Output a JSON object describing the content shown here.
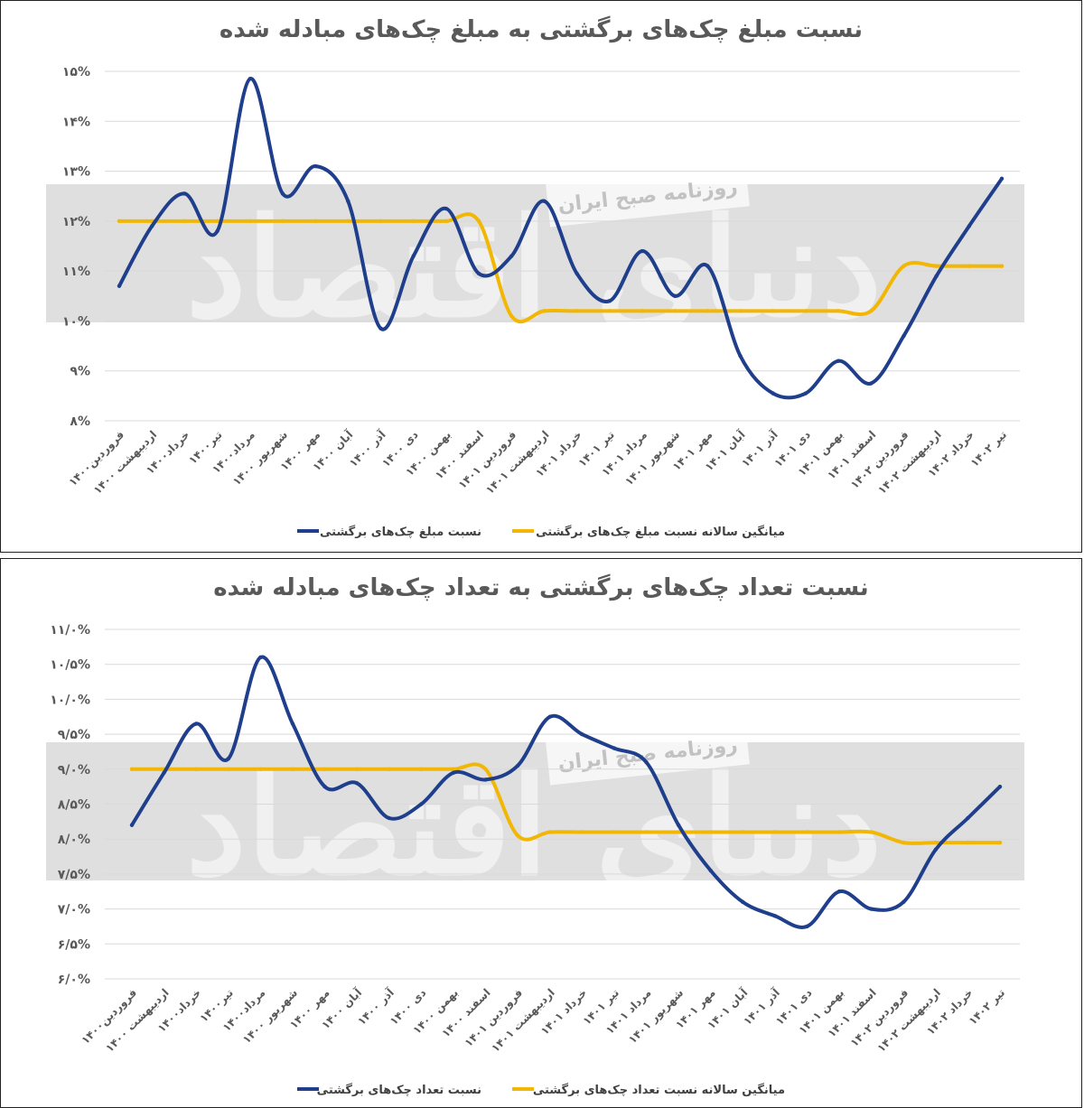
{
  "colors": {
    "main": "#1f3f8c",
    "avg": "#f2b705"
  },
  "watermark": {
    "label": "روزنامه صبح ایران",
    "logo_text": "دنیای اقتصاد"
  },
  "chart_data": [
    {
      "type": "line",
      "title": "نسبت مبلغ چک‌های برگشتی به مبلغ چک‌های مبادله شده",
      "y_ticks": [
        "۸%",
        "۹%",
        "۱۰%",
        "۱۱%",
        "۱۲%",
        "۱۳%",
        "۱۴%",
        "۱۵%"
      ],
      "ylim": [
        8,
        15
      ],
      "categories": [
        "فروردین۱۴۰۰",
        "اردیبهشت ۱۴۰۰",
        "خرداد۱۴۰۰",
        "تیر۱۴۰۰",
        "مرداد۱۴۰۰",
        "شهریور ۱۴۰۰",
        "مهر ۱۴۰۰",
        "آبان ۱۴۰۰",
        "آذر ۱۴۰۰",
        "دی ۱۴۰۰",
        "بهمن ۱۴۰۰",
        "اسفند ۱۴۰۰",
        "فروردین ۱۴۰۱",
        "اردیبهشت ۱۴۰۱",
        "خرداد ۱۴۰۱",
        "تیر ۱۴۰۱",
        "مرداد ۱۴۰۱",
        "شهریور ۱۴۰۱",
        "مهر ۱۴۰۱",
        "آبان ۱۴۰۱",
        "آذر ۱۴۰۱",
        "دی ۱۴۰۱",
        "بهمن ۱۴۰۱",
        "اسفند ۱۴۰۱",
        "فروردین ۱۴۰۲",
        "اردیبهشت ۱۴۰۲",
        "خرداد ۱۴۰۲",
        "تیر ۱۴۰۲"
      ],
      "series": [
        {
          "name": "نسبت مبلغ چک‌های برگشتی",
          "color": "#1f3f8c",
          "values": [
            10.7,
            11.9,
            12.55,
            11.8,
            14.85,
            12.55,
            13.1,
            12.4,
            9.85,
            11.3,
            12.25,
            10.95,
            11.3,
            12.4,
            10.95,
            10.4,
            11.4,
            10.5,
            11.1,
            9.3,
            8.55,
            8.55,
            9.2,
            8.75,
            9.7,
            10.9,
            11.9,
            12.85
          ]
        },
        {
          "name": "میانگین سالانه نسبت مبلغ چک‌های برگشتی",
          "color": "#f2b705",
          "values": [
            12.0,
            12.0,
            12.0,
            12.0,
            12.0,
            12.0,
            12.0,
            12.0,
            12.0,
            12.0,
            12.0,
            12.0,
            10.1,
            10.2,
            10.2,
            10.2,
            10.2,
            10.2,
            10.2,
            10.2,
            10.2,
            10.2,
            10.2,
            10.2,
            11.1,
            11.1,
            11.1,
            11.1
          ]
        }
      ]
    },
    {
      "type": "line",
      "title": "نسبت تعداد چک‌های برگشتی به تعداد چک‌های مبادله شده",
      "y_ticks": [
        "۶/۰%",
        "۶/۵%",
        "۷/۰%",
        "۷/۵%",
        "۸/۰%",
        "۸/۵%",
        "۹/۰%",
        "۹/۵%",
        "۱۰/۰%",
        "۱۰/۵%",
        "۱۱/۰%"
      ],
      "ylim": [
        6,
        11
      ],
      "categories": [
        "فروردین۱۴۰۰",
        "اردیبهشت ۱۴۰۰",
        "خرداد۱۴۰۰",
        "تیر۱۴۰۰",
        "مرداد۱۴۰۰",
        "شهریور ۱۴۰۰",
        "مهر ۱۴۰۰",
        "آبان ۱۴۰۰",
        "آذر ۱۴۰۰",
        "دی ۱۴۰۰",
        "بهمن ۱۴۰۰",
        "اسفند ۱۴۰۰",
        "فروردین ۱۴۰۱",
        "اردیبهشت ۱۴۰۱",
        "خرداد ۱۴۰۱",
        "تیر ۱۴۰۱",
        "مرداد ۱۴۰۱",
        "شهریور ۱۴۰۱",
        "مهر ۱۴۰۱",
        "آبان ۱۴۰۱",
        "آذر ۱۴۰۱",
        "دی ۱۴۰۱",
        "بهمن ۱۴۰۱",
        "اسفند ۱۴۰۱",
        "فروردین ۱۴۰۲",
        "اردیبهشت ۱۴۰۲",
        "خرداد ۱۴۰۲",
        "تیر ۱۴۰۲"
      ],
      "series": [
        {
          "name": "نسبت تعداد چک‌های برگشتی",
          "color": "#1f3f8c",
          "values": [
            8.2,
            8.95,
            9.65,
            9.15,
            10.6,
            9.65,
            8.75,
            8.8,
            8.3,
            8.5,
            8.95,
            8.85,
            9.05,
            9.75,
            9.5,
            9.3,
            9.1,
            8.2,
            7.55,
            7.1,
            6.9,
            6.75,
            7.25,
            7.0,
            7.1,
            7.85,
            8.3,
            8.75
          ]
        },
        {
          "name": "میانگین سالانه نسبت تعداد چک‌های برگشتی",
          "color": "#f2b705",
          "values": [
            9.0,
            9.0,
            9.0,
            9.0,
            9.0,
            9.0,
            9.0,
            9.0,
            9.0,
            9.0,
            9.0,
            9.0,
            8.05,
            8.1,
            8.1,
            8.1,
            8.1,
            8.1,
            8.1,
            8.1,
            8.1,
            8.1,
            8.1,
            8.1,
            7.95,
            7.95,
            7.95,
            7.95
          ]
        }
      ]
    }
  ]
}
